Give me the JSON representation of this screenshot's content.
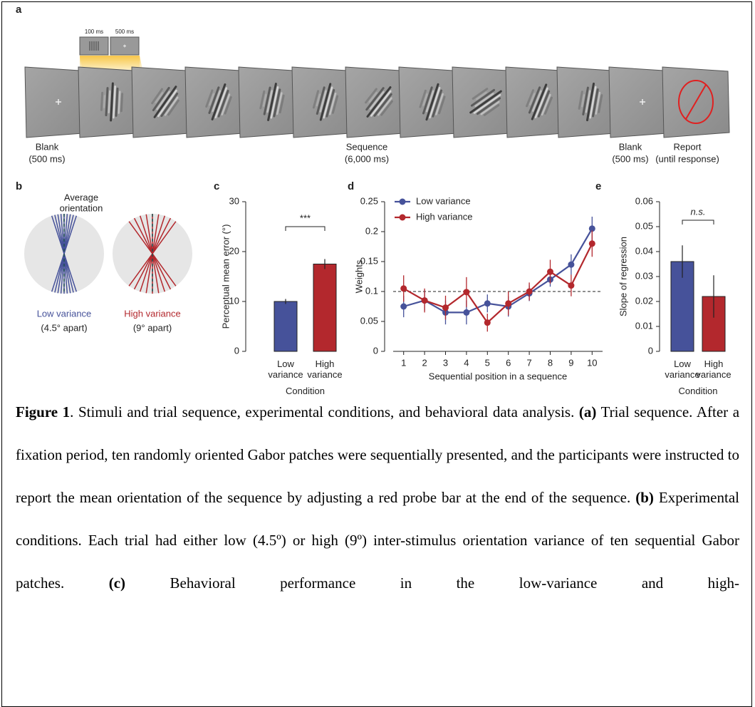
{
  "panel_a": {
    "label": "a",
    "inset": [
      "100 ms",
      "500 ms"
    ],
    "stages": [
      {
        "name": "Blank",
        "duration": "(500 ms)"
      },
      {
        "name": "Sequence",
        "duration": "(6,000 ms)"
      },
      {
        "name": "Blank",
        "duration": "(500 ms)"
      },
      {
        "name": "Report",
        "duration": "(until response)"
      }
    ]
  },
  "panel_b": {
    "label": "b",
    "annotation": [
      "Average",
      "orientation"
    ],
    "conditions": [
      {
        "name": "Low variance",
        "spacing": "(4.5° apart)",
        "color": "#46529a"
      },
      {
        "name": "High variance",
        "spacing": "(9° apart)",
        "color": "#b3282d"
      }
    ]
  },
  "chart_data": [
    {
      "type": "bar",
      "panel": "c",
      "ylabel": "Perceptual mean error (°)",
      "xlabel": "Condition",
      "categories": [
        "Low variance",
        "High variance"
      ],
      "values": [
        10,
        17.5
      ],
      "errors": [
        0.5,
        1
      ],
      "colors": [
        "#46529a",
        "#b3282d"
      ],
      "ylim": [
        0,
        30
      ],
      "yticks": [
        0,
        10,
        20,
        30
      ],
      "significance": "***"
    },
    {
      "type": "line",
      "panel": "d",
      "ylabel": "Weights",
      "xlabel": "Sequential position in a sequence",
      "x": [
        1,
        2,
        3,
        4,
        5,
        6,
        7,
        8,
        9,
        10
      ],
      "xlim": [
        0.5,
        10.5
      ],
      "xticks": [
        1,
        2,
        3,
        4,
        5,
        6,
        7,
        8,
        9,
        10
      ],
      "ylim": [
        0,
        0.25
      ],
      "yticks": [
        0,
        0.05,
        0.1,
        0.15,
        0.2,
        0.25
      ],
      "reference_line": 0.1,
      "legend": "upper left",
      "series": [
        {
          "name": "Low variance",
          "color": "#46529a",
          "values": [
            0.075,
            0.085,
            0.065,
            0.065,
            0.08,
            0.075,
            0.097,
            0.12,
            0.145,
            0.205
          ],
          "errors": [
            0.018,
            0.017,
            0.02,
            0.02,
            0.015,
            0.017,
            0.013,
            0.012,
            0.017,
            0.02
          ]
        },
        {
          "name": "High variance",
          "color": "#b3282d",
          "values": [
            0.105,
            0.085,
            0.073,
            0.099,
            0.048,
            0.08,
            0.1,
            0.133,
            0.11,
            0.18
          ],
          "errors": [
            0.022,
            0.02,
            0.02,
            0.025,
            0.015,
            0.02,
            0.015,
            0.02,
            0.018,
            0.022
          ]
        }
      ]
    },
    {
      "type": "bar",
      "panel": "e",
      "ylabel": "Slope of regression",
      "xlabel": "Condition",
      "categories": [
        "Low variance",
        "High variance"
      ],
      "values": [
        0.036,
        0.022
      ],
      "errors": [
        0.0065,
        0.0085
      ],
      "colors": [
        "#46529a",
        "#b3282d"
      ],
      "ylim": [
        0,
        0.06
      ],
      "yticks": [
        0,
        0.01,
        0.02,
        0.03,
        0.04,
        0.05,
        0.06
      ],
      "significance": "n.s."
    }
  ],
  "caption": {
    "label": "Figure 1",
    "title": ". Stimuli and trial sequence, experimental conditions, and behavioral data analysis.",
    "items": [
      {
        "label": "(a)",
        "text": " Trial sequence. After a fixation period, ten randomly oriented Gabor patches were sequentially presented, and the participants were instructed to report the mean orientation of the sequence by adjusting a red probe bar at the end of the sequence."
      },
      {
        "label": "(b)",
        "text": " Experimental conditions. Each trial had either low (4.5º) or high (9º) inter-stimulus orientation variance of ten sequential Gabor patches."
      },
      {
        "label": "(c)",
        "text": " Behavioral performance in the low-variance and high-"
      }
    ]
  }
}
